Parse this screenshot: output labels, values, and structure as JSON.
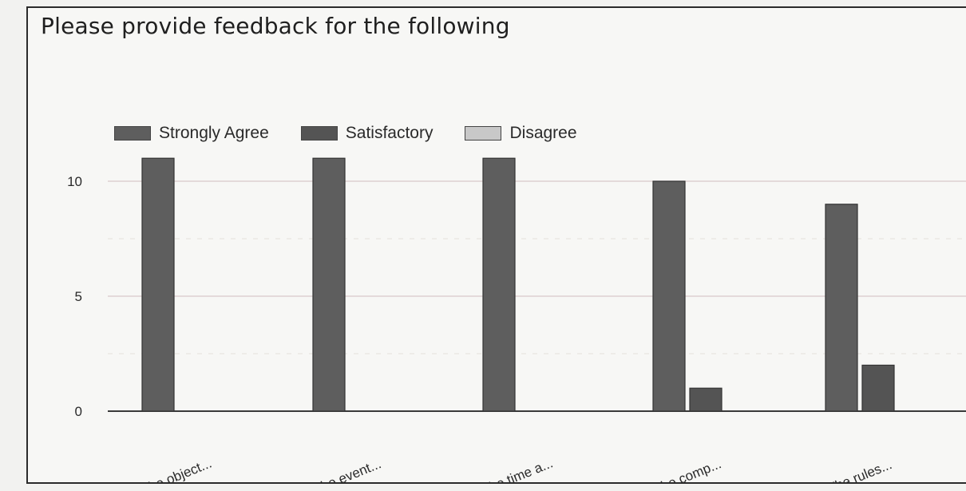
{
  "page": {
    "title": "Please provide feedback for the following"
  },
  "colors": {
    "background": "#f7f7f5",
    "gridline": "#d9c9c9",
    "axis": "#3a3a3a"
  },
  "chart_data": {
    "type": "bar",
    "title": "Please provide feedback for the following",
    "xlabel": "",
    "ylabel": "",
    "categories": [
      "The object...",
      "The event...",
      "The time a...",
      "The comp...",
      "The rules..."
    ],
    "series": [
      {
        "name": "Strongly Agree",
        "color": "#5e5e5e",
        "values": [
          11,
          11,
          11,
          10,
          9
        ]
      },
      {
        "name": "Satisfactory",
        "color": "#545454",
        "values": [
          0,
          0,
          0,
          1,
          2
        ]
      },
      {
        "name": "Disagree",
        "color": "#c8c8c8",
        "values": [
          0,
          0,
          0,
          0,
          0
        ]
      }
    ],
    "ylim": [
      0,
      12
    ],
    "yticks": [
      0,
      5,
      10
    ],
    "grid": true,
    "legend_position": "top-left"
  }
}
